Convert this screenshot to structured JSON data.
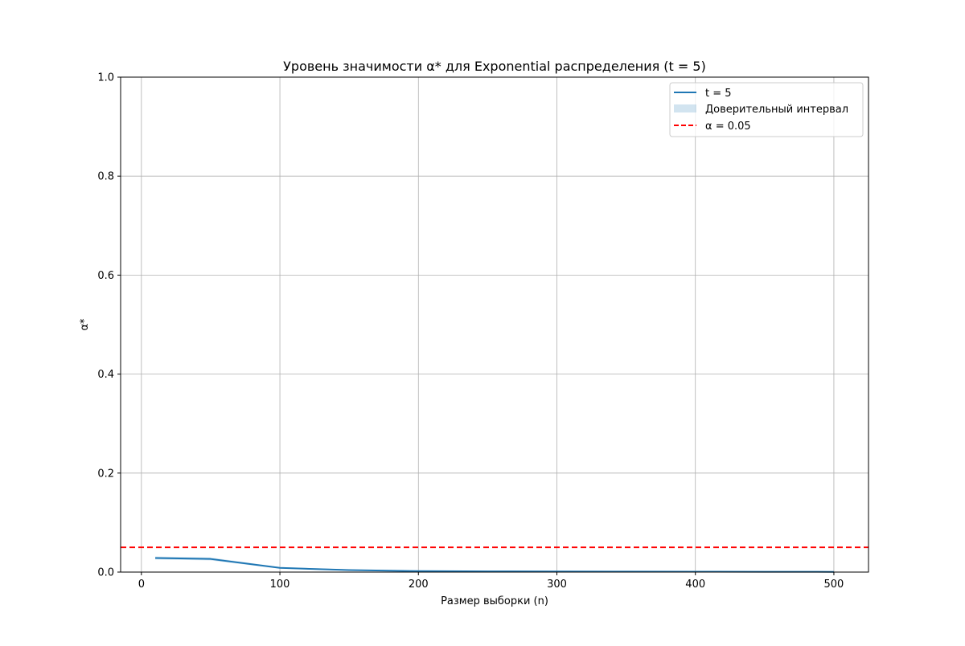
{
  "chart_data": {
    "type": "line",
    "title": "Уровень значимости α* для Exponential распределения (t = 5)",
    "xlabel": "Размер выборки (n)",
    "ylabel": "α*",
    "xlim": [
      -15,
      525
    ],
    "ylim": [
      0,
      1
    ],
    "xticks": [
      0,
      100,
      200,
      300,
      400,
      500
    ],
    "yticks": [
      0.0,
      0.2,
      0.4,
      0.6,
      0.8,
      1.0
    ],
    "xtick_labels": [
      "0",
      "100",
      "200",
      "300",
      "400",
      "500"
    ],
    "ytick_labels": [
      "0.0",
      "0.2",
      "0.4",
      "0.6",
      "0.8",
      "1.0"
    ],
    "grid": true,
    "legend_position": "top-right",
    "series": [
      {
        "name": "t = 5",
        "color": "#1f77b4",
        "x": [
          10,
          50,
          100,
          150,
          200,
          250,
          300,
          350,
          400,
          450,
          500
        ],
        "y": [
          0.0285,
          0.0265,
          0.0085,
          0.004,
          0.002,
          0.0015,
          0.0012,
          0.001,
          0.0008,
          0.0006,
          0.0005
        ],
        "ci_lower": [
          0.0255,
          0.0235,
          0.0068,
          0.0028,
          0.0012,
          0.0008,
          0.0006,
          0.0005,
          0.0003,
          0.0002,
          0.0001
        ],
        "ci_upper": [
          0.0315,
          0.0295,
          0.0102,
          0.0052,
          0.0028,
          0.0022,
          0.0018,
          0.0015,
          0.0013,
          0.001,
          0.0009
        ]
      }
    ],
    "confidence_band": {
      "name": "Доверительный интервал",
      "color": "#1f77b4",
      "opacity": 0.2
    },
    "reference_line": {
      "name": "α = 0.05",
      "y": 0.05,
      "color": "#ff0000",
      "style": "dashed"
    }
  }
}
